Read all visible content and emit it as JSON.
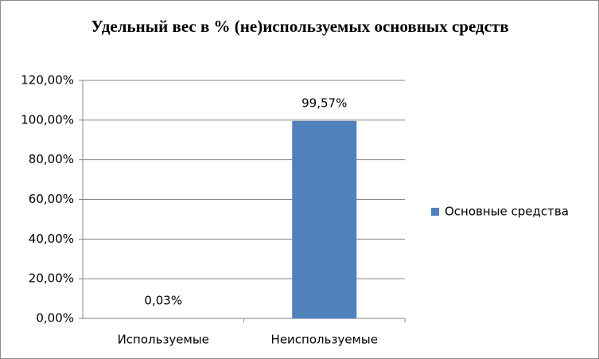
{
  "chart_data": {
    "type": "bar",
    "title": "Удельный вес в % (не)используемых основных средств",
    "categories": [
      "Используемые",
      "Неиспользуемые"
    ],
    "series": [
      {
        "name": "Основные средства",
        "color": "#4f81bd",
        "values": [
          0.03,
          99.57
        ],
        "value_labels": [
          "0,03%",
          "99,57%"
        ]
      }
    ],
    "ylim": [
      0,
      120
    ],
    "yticks": [
      {
        "value": 0,
        "label": "0,00%"
      },
      {
        "value": 20,
        "label": "20,00%"
      },
      {
        "value": 40,
        "label": "40,00%"
      },
      {
        "value": 60,
        "label": "60,00%"
      },
      {
        "value": 80,
        "label": "80,00%"
      },
      {
        "value": 100,
        "label": "100,00%"
      },
      {
        "value": 120,
        "label": "120,00%"
      }
    ],
    "grid": true,
    "legend": "right"
  }
}
